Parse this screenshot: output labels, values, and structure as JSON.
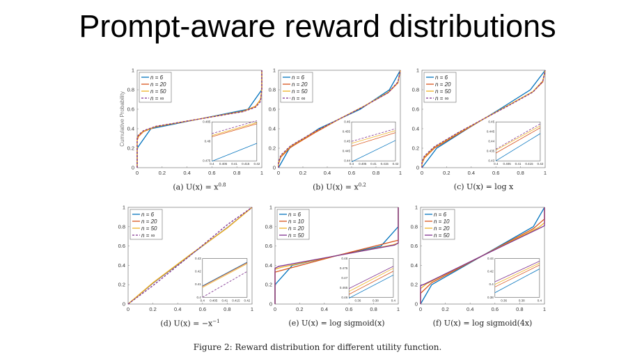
{
  "slide_title": "Prompt-aware reward distributions",
  "figure_caption": "Figure 2: Reward distribution for different utility function.",
  "colors": {
    "n6": "#0072BD",
    "n10_20": "#D95319",
    "yellow": "#EDB120",
    "purple": "#7E2F8E"
  },
  "chart_data": [
    {
      "id": "a",
      "type": "line",
      "caption": "(a) U(x) = x^0.8",
      "ylabel": "Cumulative Probability",
      "xlabel": "",
      "xlim": [
        0,
        1
      ],
      "ylim": [
        0,
        1
      ],
      "ticks": [
        "0",
        "0.2",
        "0.4",
        "0.6",
        "0.8",
        "1"
      ],
      "series": [
        {
          "name": "n = 6",
          "color": "#0072BD",
          "dashed": false,
          "x": [
            0,
            0,
            0.11,
            0.89,
            1,
            1
          ],
          "y": [
            0,
            0.2,
            0.4,
            0.6,
            0.8,
            1
          ]
        },
        {
          "name": "n = 20",
          "color": "#D95319",
          "dashed": false,
          "x": [
            0,
            0,
            0.01,
            0.05,
            0.15,
            0.5,
            0.85,
            0.95,
            0.99,
            1,
            1
          ],
          "y": [
            0,
            0.28,
            0.32,
            0.37,
            0.42,
            0.5,
            0.58,
            0.63,
            0.7,
            0.8,
            1
          ]
        },
        {
          "name": "n = 50",
          "color": "#EDB120",
          "dashed": false,
          "x": [
            0,
            0,
            0.01,
            0.05,
            0.15,
            0.5,
            0.85,
            0.95,
            0.99,
            1,
            1
          ],
          "y": [
            0,
            0.3,
            0.33,
            0.375,
            0.422,
            0.5,
            0.578,
            0.625,
            0.7,
            0.8,
            1
          ]
        },
        {
          "name": "n = ∞",
          "color": "#7E2F8E",
          "dashed": true,
          "x": [
            0,
            0,
            0.01,
            0.05,
            0.15,
            0.5,
            0.85,
            0.95,
            0.99,
            1,
            1
          ],
          "y": [
            0,
            0.31,
            0.335,
            0.38,
            0.425,
            0.5,
            0.575,
            0.62,
            0.68,
            0.8,
            1
          ]
        }
      ],
      "inset": {
        "xlim": [
          0.4,
          0.42
        ],
        "ylim": [
          0.475,
          0.485
        ],
        "xticks": [
          "0.4",
          "0.405",
          "0.41",
          "0.415",
          "0.42"
        ],
        "yticks": [
          "0.475",
          "0.48",
          "0.485"
        ],
        "series_y": [
          [
            0.4749,
            0.4795
          ],
          [
            0.4812,
            0.4845
          ],
          [
            0.4815,
            0.4848
          ],
          [
            0.482,
            0.4853
          ]
        ]
      }
    },
    {
      "id": "b",
      "type": "line",
      "caption": "(b) U(x) = x^0.2",
      "xlim": [
        0,
        1
      ],
      "ylim": [
        0,
        1
      ],
      "ticks": [
        "0",
        "0.2",
        "0.4",
        "0.6",
        "0.8",
        "1"
      ],
      "series": [
        {
          "name": "n = 6",
          "color": "#0072BD",
          "dashed": false,
          "x": [
            0,
            0.09,
            0.33,
            0.67,
            0.91,
            1
          ],
          "y": [
            0,
            0.2,
            0.4,
            0.6,
            0.8,
            1
          ]
        },
        {
          "name": "n = 20",
          "color": "#D95319",
          "dashed": false,
          "x": [
            0,
            0,
            0.02,
            0.1,
            0.3,
            0.5,
            0.7,
            0.9,
            0.98,
            1
          ],
          "y": [
            0,
            0.04,
            0.11,
            0.21,
            0.36,
            0.5,
            0.63,
            0.77,
            0.87,
            1
          ]
        },
        {
          "name": "n = 50",
          "color": "#EDB120",
          "dashed": false,
          "x": [
            0,
            0,
            0.02,
            0.1,
            0.3,
            0.5,
            0.7,
            0.9,
            0.98,
            1
          ],
          "y": [
            0,
            0.05,
            0.12,
            0.22,
            0.37,
            0.5,
            0.63,
            0.775,
            0.875,
            1
          ]
        },
        {
          "name": "n = ∞",
          "color": "#7E2F8E",
          "dashed": true,
          "x": [
            0,
            0,
            0.02,
            0.1,
            0.3,
            0.5,
            0.7,
            0.9,
            0.98,
            1
          ],
          "y": [
            0,
            0.06,
            0.13,
            0.225,
            0.372,
            0.5,
            0.628,
            0.77,
            0.88,
            1
          ]
        }
      ],
      "inset": {
        "xlim": [
          0.4,
          0.42
        ],
        "ylim": [
          0.44,
          0.46
        ],
        "xticks": [
          "0.4",
          "0.405",
          "0.41",
          "0.415",
          "0.42"
        ],
        "yticks": [
          "0.44",
          "0.445",
          "0.45",
          "0.455",
          "0.46"
        ],
        "series_y": [
          [
            0.4395,
            0.4505
          ],
          [
            0.4475,
            0.4545
          ],
          [
            0.449,
            0.4555
          ],
          [
            0.45,
            0.4565
          ]
        ]
      }
    },
    {
      "id": "c",
      "type": "line",
      "caption": "(c) U(x) = log x",
      "xlim": [
        0,
        1
      ],
      "ylim": [
        0,
        1
      ],
      "ticks": [
        "0",
        "0.2",
        "0.4",
        "0.6",
        "0.8",
        "1"
      ],
      "series": [
        {
          "name": "n = 6",
          "color": "#0072BD",
          "dashed": false,
          "x": [
            0,
            0.12,
            0.37,
            0.63,
            0.88,
            1
          ],
          "y": [
            0,
            0.2,
            0.4,
            0.6,
            0.8,
            1
          ]
        },
        {
          "name": "n = 20",
          "color": "#D95319",
          "dashed": false,
          "x": [
            0,
            0,
            0.02,
            0.1,
            0.3,
            0.5,
            0.7,
            0.9,
            0.98,
            1
          ],
          "y": [
            0,
            0.04,
            0.1,
            0.2,
            0.35,
            0.5,
            0.64,
            0.78,
            0.88,
            1
          ]
        },
        {
          "name": "n = 50",
          "color": "#EDB120",
          "dashed": false,
          "x": [
            0,
            0,
            0.02,
            0.1,
            0.3,
            0.5,
            0.7,
            0.9,
            0.98,
            1
          ],
          "y": [
            0,
            0.05,
            0.11,
            0.21,
            0.36,
            0.5,
            0.64,
            0.78,
            0.89,
            1
          ]
        },
        {
          "name": "n = ∞",
          "color": "#7E2F8E",
          "dashed": true,
          "x": [
            0,
            0,
            0.02,
            0.1,
            0.3,
            0.5,
            0.7,
            0.9,
            0.98,
            1
          ],
          "y": [
            0,
            0.06,
            0.12,
            0.215,
            0.365,
            0.5,
            0.635,
            0.775,
            0.885,
            1
          ]
        }
      ],
      "inset": {
        "xlim": [
          0.4,
          0.42
        ],
        "ylim": [
          0.43,
          0.45
        ],
        "xticks": [
          "0.4",
          "0.405",
          "0.41",
          "0.415",
          "0.42"
        ],
        "yticks": [
          "0.43",
          "0.435",
          "0.44",
          "0.445",
          "0.45"
        ],
        "series_y": [
          [
            0.43,
            0.444
          ],
          [
            0.434,
            0.447
          ],
          [
            0.4355,
            0.448
          ],
          [
            0.436,
            0.449
          ]
        ]
      }
    },
    {
      "id": "d",
      "type": "line",
      "caption": "(d) U(x) = −x^−1",
      "xlim": [
        0,
        1
      ],
      "ylim": [
        0,
        1
      ],
      "ticks": [
        "0",
        "0.2",
        "0.4",
        "0.6",
        "0.8",
        "1"
      ],
      "series": [
        {
          "name": "n = 6",
          "color": "#0072BD",
          "dashed": false,
          "x": [
            0,
            0.2,
            0.5,
            0.8,
            1
          ],
          "y": [
            0,
            0.215,
            0.505,
            0.79,
            1
          ]
        },
        {
          "name": "n = 20",
          "color": "#D95319",
          "dashed": false,
          "x": [
            0,
            0.2,
            0.5,
            0.8,
            1
          ],
          "y": [
            0,
            0.218,
            0.508,
            0.788,
            1
          ]
        },
        {
          "name": "n = 50",
          "color": "#EDB120",
          "dashed": false,
          "x": [
            0,
            0.2,
            0.5,
            0.8,
            1
          ],
          "y": [
            0,
            0.22,
            0.51,
            0.786,
            1
          ]
        },
        {
          "name": "n = ∞",
          "color": "#7E2F8E",
          "dashed": true,
          "x": [
            0,
            0.2,
            0.5,
            0.8,
            1
          ],
          "y": [
            0,
            0.19,
            0.5,
            0.82,
            1
          ]
        }
      ],
      "inset": {
        "xlim": [
          0.4,
          0.42
        ],
        "ylim": [
          0.4,
          0.43
        ],
        "xticks": [
          "0.4",
          "0.405",
          "0.41",
          "0.415",
          "0.42"
        ],
        "yticks": [
          "0.4",
          "0.41",
          "0.42",
          "0.43"
        ],
        "series_y": [
          [
            0.4088,
            0.4272
          ],
          [
            0.4084,
            0.4268
          ],
          [
            0.4076,
            0.426
          ],
          [
            0.4,
            0.42
          ]
        ]
      }
    },
    {
      "id": "e",
      "type": "line",
      "caption": "(e) U(x) = log sigmoid(x)",
      "xlim": [
        0,
        1
      ],
      "ylim": [
        0,
        1
      ],
      "ticks": [
        "0",
        "0.2",
        "0.4",
        "0.6",
        "0.8",
        "1"
      ],
      "series": [
        {
          "name": "n = 6",
          "color": "#0072BD",
          "dashed": false,
          "x": [
            0,
            0,
            0.14,
            0.86,
            1,
            1
          ],
          "y": [
            0,
            0.2,
            0.4,
            0.6,
            0.8,
            1
          ]
        },
        {
          "name": "n = 10",
          "color": "#D95319",
          "dashed": false,
          "x": [
            0,
            0,
            0.5,
            1,
            1
          ],
          "y": [
            0,
            0.33,
            0.5,
            0.66,
            1
          ]
        },
        {
          "name": "n = 20",
          "color": "#EDB120",
          "dashed": false,
          "x": [
            0,
            0,
            0.05,
            0.5,
            0.95,
            1,
            1
          ],
          "y": [
            0,
            0.36,
            0.38,
            0.5,
            0.61,
            0.63,
            1
          ]
        },
        {
          "name": "n = 50",
          "color": "#7E2F8E",
          "dashed": false,
          "x": [
            0,
            0,
            0.03,
            0.5,
            0.97,
            1,
            1
          ],
          "y": [
            0,
            0.37,
            0.39,
            0.5,
            0.61,
            0.63,
            1
          ]
        }
      ],
      "inset": {
        "xlim": [
          0.35,
          0.4
        ],
        "ylim": [
          0.46,
          0.48
        ],
        "xticks": [
          "0.36",
          "0.38",
          "0.4"
        ],
        "xtick_vals": [
          0.36,
          0.38,
          0.4
        ],
        "yticks": [
          "0.46",
          "0.465",
          "0.47",
          "0.475",
          "0.48"
        ],
        "series_y": [
          [
            0.4595,
            0.4715
          ],
          [
            0.4615,
            0.4735
          ],
          [
            0.463,
            0.475
          ],
          [
            0.4645,
            0.476
          ]
        ]
      }
    },
    {
      "id": "f",
      "type": "line",
      "caption": "(f) U(x) = log sigmoid(4x)",
      "xlim": [
        0,
        1
      ],
      "ylim": [
        0,
        1
      ],
      "ticks": [
        "0",
        "0.2",
        "0.4",
        "0.6",
        "0.8",
        "1"
      ],
      "series": [
        {
          "name": "n = 6",
          "color": "#0072BD",
          "dashed": false,
          "x": [
            0,
            0.09,
            0.5,
            0.91,
            1
          ],
          "y": [
            0,
            0.2,
            0.5,
            0.8,
            1
          ]
        },
        {
          "name": "n = 10",
          "color": "#D95319",
          "dashed": false,
          "x": [
            0,
            0,
            0.09,
            0.5,
            0.91,
            1,
            1
          ],
          "y": [
            0,
            0.11,
            0.22,
            0.5,
            0.78,
            0.88,
            1
          ]
        },
        {
          "name": "n = 20",
          "color": "#EDB120",
          "dashed": false,
          "x": [
            0,
            0,
            0.05,
            0.5,
            0.95,
            1,
            1
          ],
          "y": [
            0,
            0.16,
            0.21,
            0.5,
            0.79,
            0.84,
            1
          ]
        },
        {
          "name": "n = 50",
          "color": "#7E2F8E",
          "dashed": false,
          "x": [
            0,
            0,
            0.03,
            0.5,
            0.97,
            1,
            1
          ],
          "y": [
            0,
            0.19,
            0.205,
            0.5,
            0.79,
            0.81,
            1
          ]
        }
      ],
      "inset": {
        "xlim": [
          0.35,
          0.4
        ],
        "ylim": [
          0.38,
          0.44
        ],
        "xticks": [
          "0.36",
          "0.38",
          "0.4"
        ],
        "xtick_vals": [
          0.36,
          0.38,
          0.4
        ],
        "yticks": [
          "0.38",
          "0.4",
          "0.42",
          "0.44"
        ],
        "series_y": [
          [
            0.387,
            0.424
          ],
          [
            0.396,
            0.43
          ],
          [
            0.4,
            0.433
          ],
          [
            0.404,
            0.436
          ]
        ]
      }
    }
  ]
}
